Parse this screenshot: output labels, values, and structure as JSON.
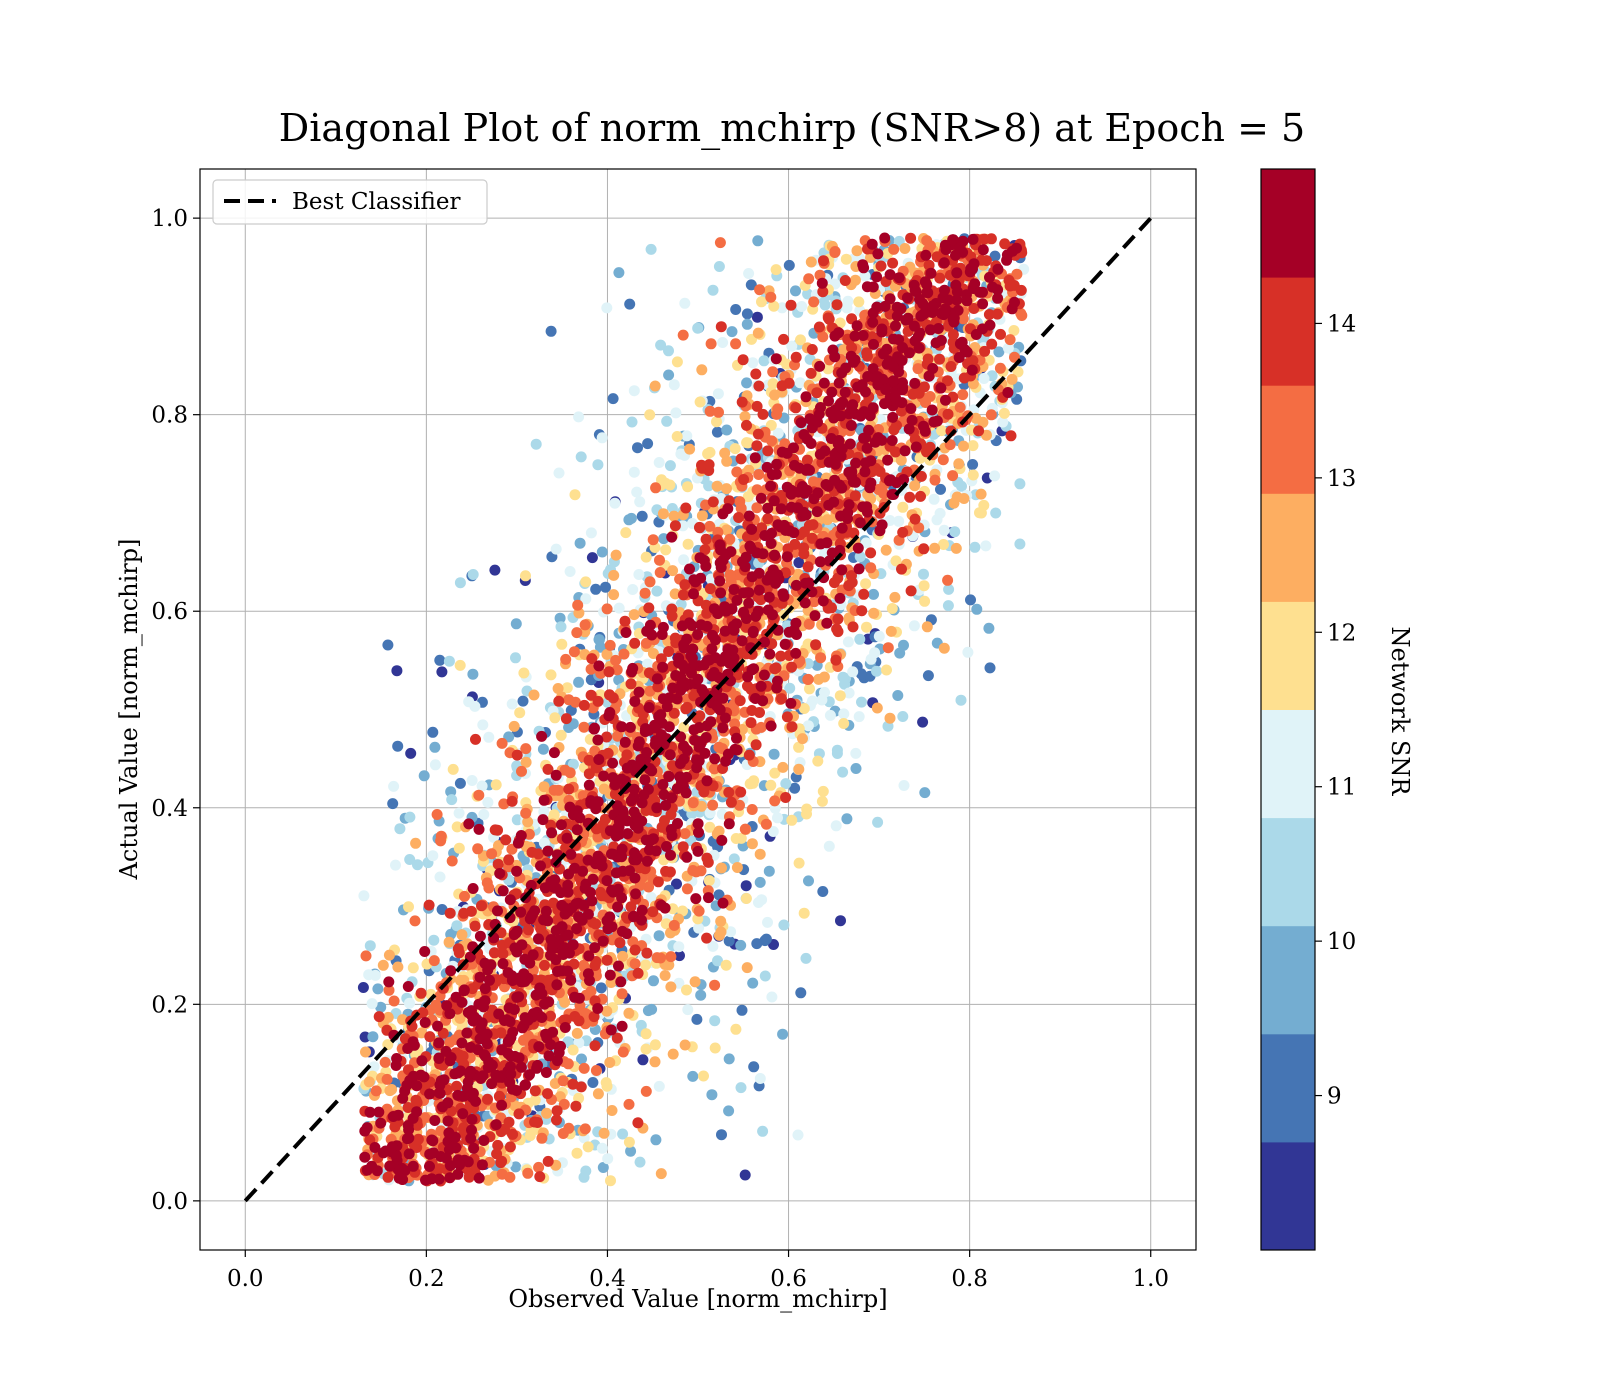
{
  "chart_data": {
    "type": "scatter",
    "title": "Diagonal Plot of norm_mchirp (SNR>8) at Epoch = 5",
    "xlabel": "Observed Value [norm_mchirp]",
    "ylabel": "Actual Value [norm_mchirp]",
    "xlim": [
      -0.05,
      1.05
    ],
    "ylim": [
      -0.05,
      1.05
    ],
    "xticks": [
      "0.0",
      "0.2",
      "0.4",
      "0.6",
      "0.8",
      "1.0"
    ],
    "yticks": [
      "0.0",
      "0.2",
      "0.4",
      "0.6",
      "0.8",
      "1.0"
    ],
    "grid": true,
    "legend": {
      "placement": "top-left",
      "entries": [
        "Best Classifier"
      ]
    },
    "reference_line": {
      "name": "Best Classifier",
      "style": "dashed",
      "color": "#000000",
      "x": [
        0.0,
        1.0
      ],
      "y": [
        0.0,
        1.0
      ]
    },
    "colorbar": {
      "label": "Network SNR",
      "range": [
        8,
        15
      ],
      "ticks": [
        "9",
        "10",
        "11",
        "12",
        "13",
        "14"
      ],
      "colors": [
        "#313695",
        "#4575b4",
        "#74add1",
        "#abd9e9",
        "#e0f3f8",
        "#fee090",
        "#fdae61",
        "#f46d43",
        "#d73027",
        "#a50026"
      ],
      "discrete_bins": 10
    },
    "point_cloud": {
      "description_of_trend": "dense band along the diagonal, high SNR points near diagonal, low SNR points scattered further",
      "x_range": [
        0.13,
        0.86
      ],
      "y_range": [
        0.0,
        0.99
      ],
      "approx_points": 6000
    }
  }
}
